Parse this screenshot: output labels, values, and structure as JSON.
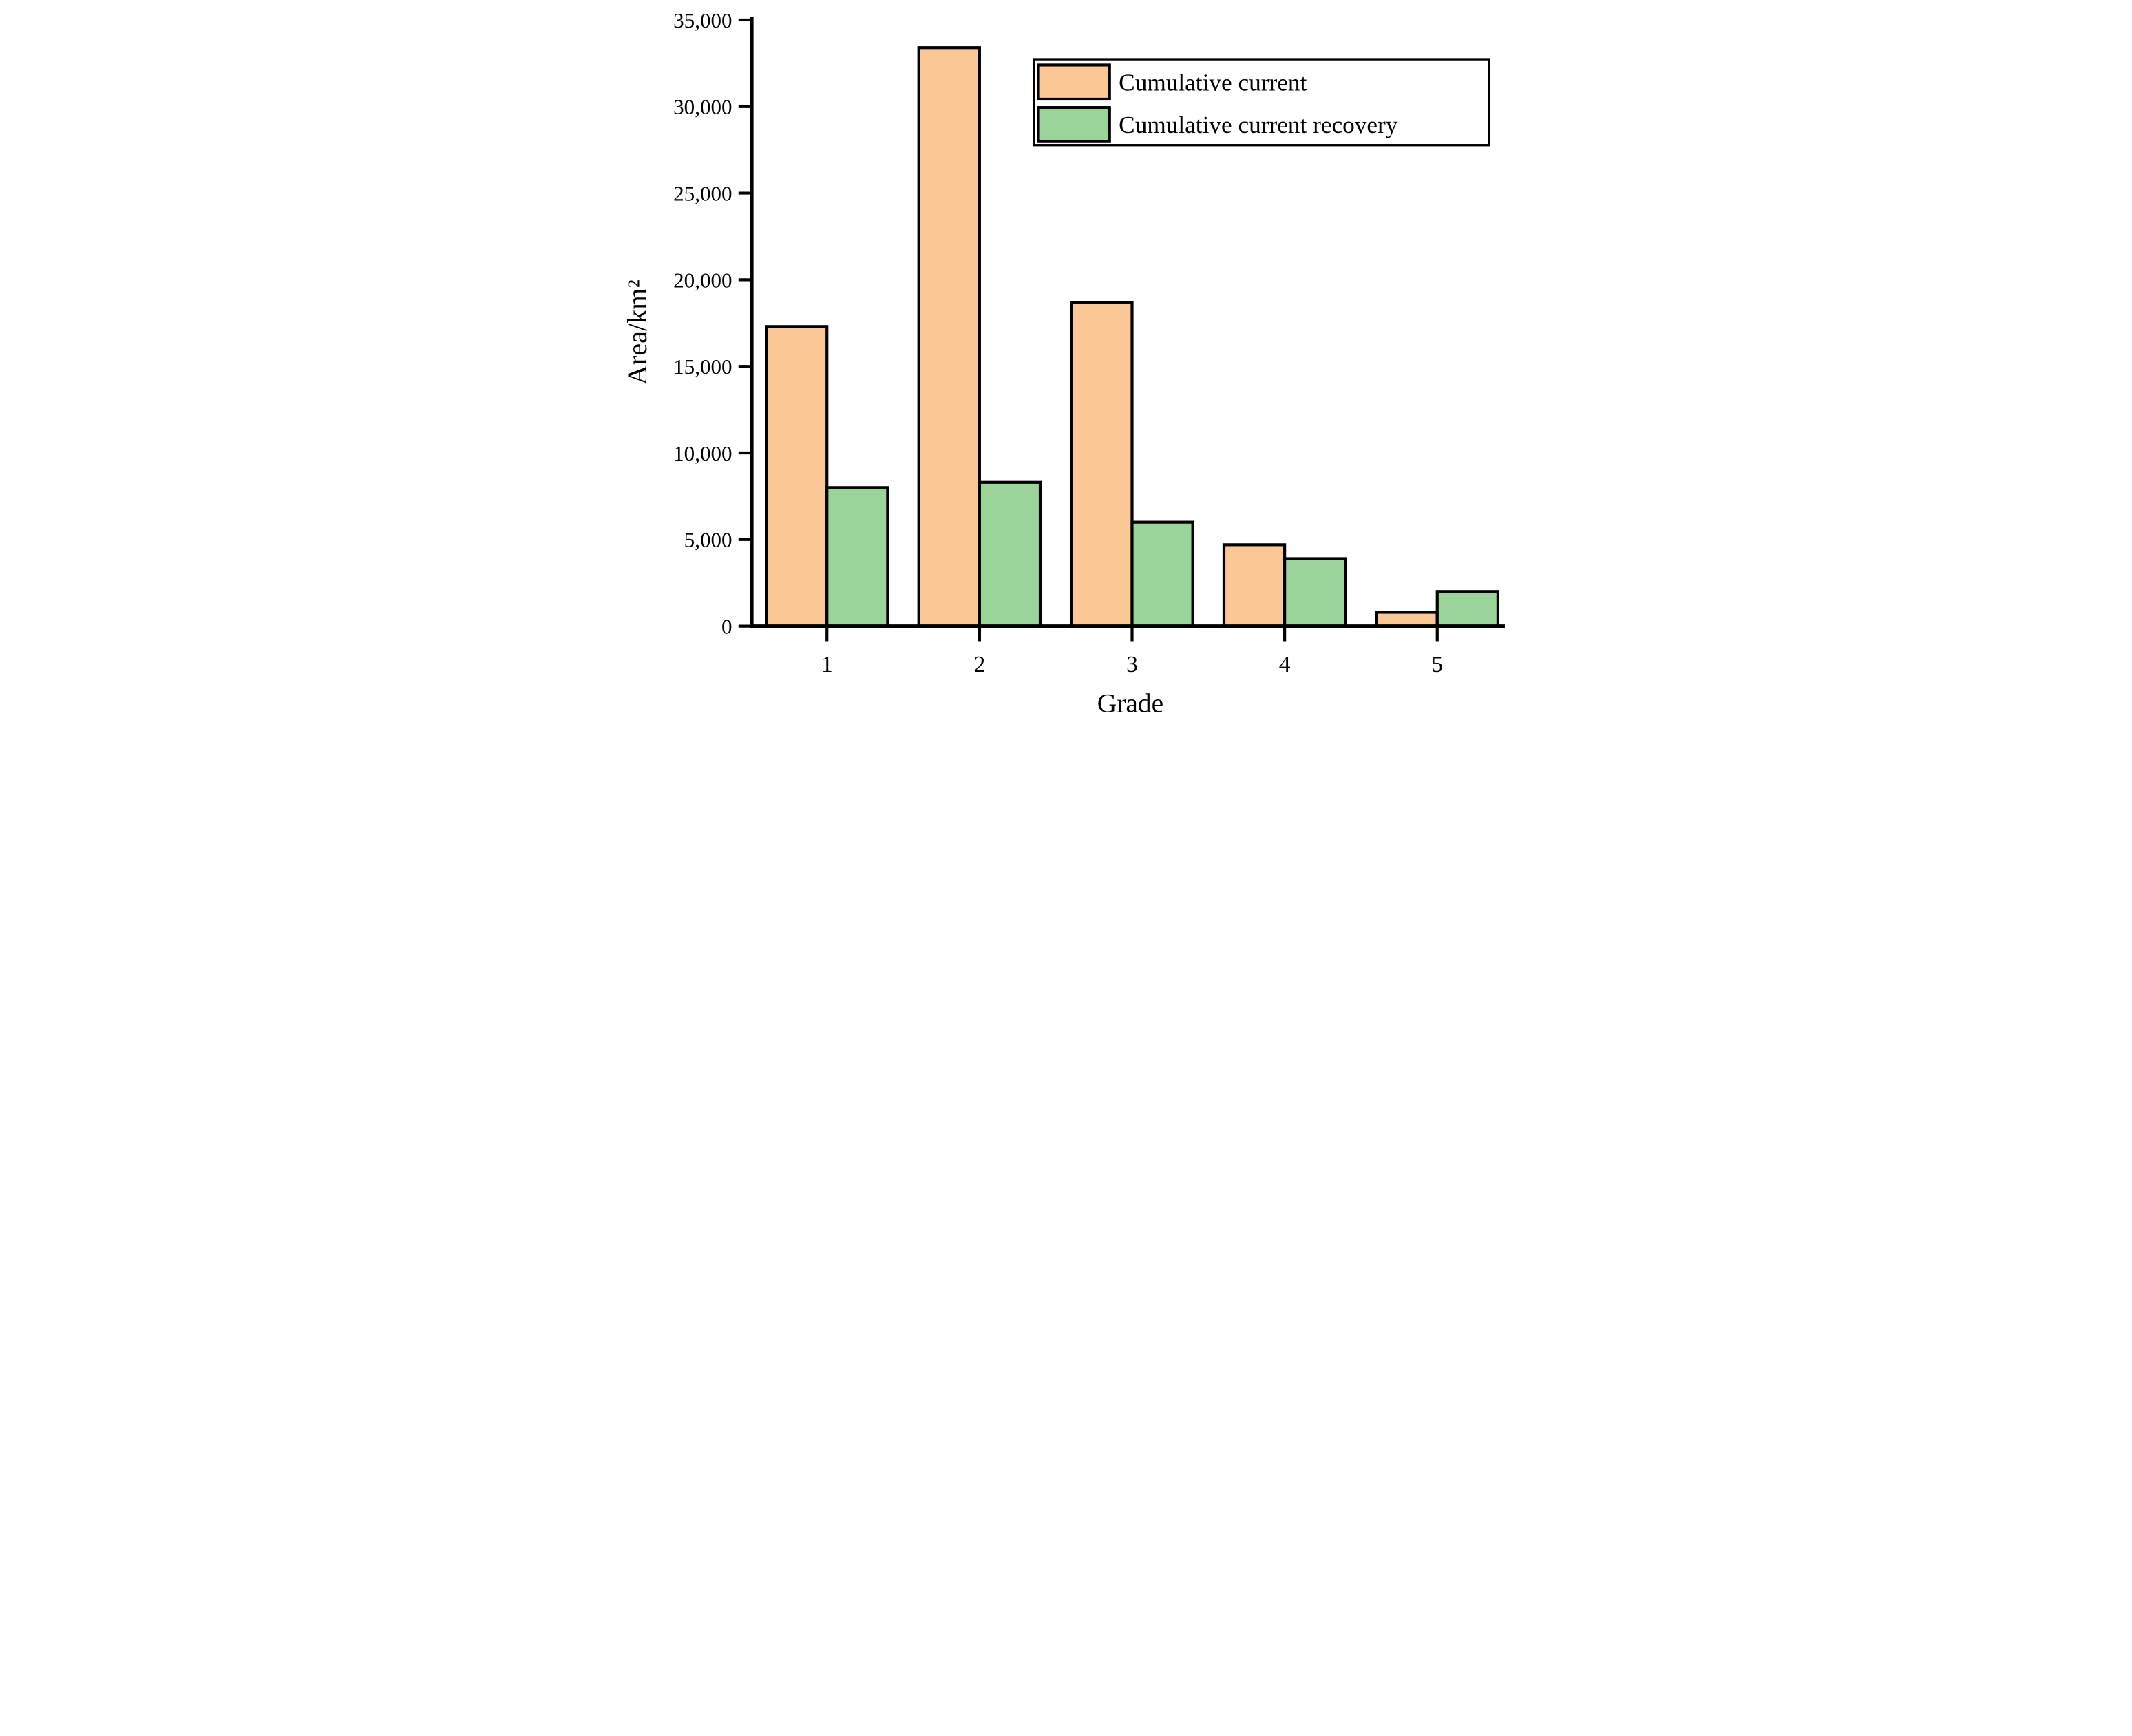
{
  "figure": {
    "kind": "scientific-bar-chart",
    "background": "#ffffff"
  },
  "chart_data": {
    "type": "bar",
    "title": "",
    "xlabel": "Grade",
    "ylabel": "Area/km²",
    "categories": [
      "1",
      "2",
      "3",
      "4",
      "5"
    ],
    "series": [
      {
        "name": "Cumulative current",
        "color": "#fbc794",
        "values": [
          17300,
          33400,
          18700,
          4700,
          800
        ]
      },
      {
        "name": "Cumulative current recovery",
        "color": "#9ad499",
        "values": [
          8000,
          8300,
          6000,
          3900,
          2000
        ]
      }
    ],
    "ylim": [
      0,
      35000
    ],
    "ytick_step": 5000,
    "ytick_labels": [
      "0",
      "5,000",
      "10,000",
      "15,000",
      "20,000",
      "25,000",
      "30,000",
      "35,000"
    ],
    "grid": false,
    "legend_position": "top-right",
    "bar_border_color": "#000000",
    "axis_color": "#000000",
    "text_color": "#000000"
  }
}
